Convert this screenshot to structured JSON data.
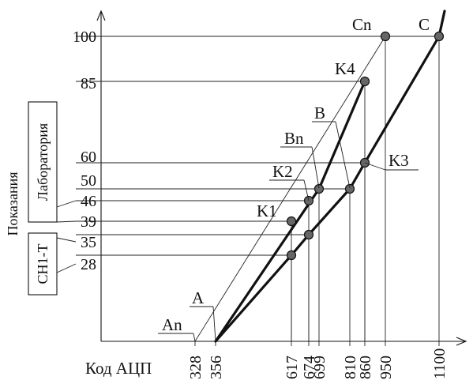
{
  "axes": {
    "x_title": "Код АЦП",
    "y_title": "Показания"
  },
  "groups": {
    "lab": "Лаборатория",
    "sn": "СН1-Т"
  },
  "y_ticks": [
    "100",
    "85",
    "60",
    "50",
    "46",
    "39",
    "35",
    "28"
  ],
  "x_ticks": [
    "328",
    "356",
    "617",
    "674",
    "699",
    "810",
    "860",
    "950",
    "1100"
  ],
  "points": {
    "A": "A",
    "An": "An",
    "B": "B",
    "Bn": "Bn",
    "C": "C",
    "Cn": "Cn",
    "K1": "K1",
    "K2": "K2",
    "K3": "K3",
    "K4": "K4"
  },
  "curve_lab": [
    [
      356,
      0
    ],
    [
      699,
      50
    ],
    [
      860,
      85
    ]
  ],
  "curve_sn": [
    [
      356,
      0
    ],
    [
      617,
      28
    ],
    [
      674,
      35
    ],
    [
      810,
      50
    ],
    [
      860,
      60
    ],
    [
      1100,
      100
    ],
    [
      1105,
      108
    ]
  ],
  "line_n": [
    [
      328,
      0
    ],
    [
      950,
      100
    ]
  ],
  "dots": [
    [
      617,
      39
    ],
    [
      674,
      46
    ],
    [
      699,
      50
    ],
    [
      860,
      85
    ],
    [
      617,
      28
    ],
    [
      674,
      35
    ],
    [
      810,
      50
    ],
    [
      860,
      60
    ],
    [
      950,
      100
    ],
    [
      1100,
      100
    ]
  ]
}
